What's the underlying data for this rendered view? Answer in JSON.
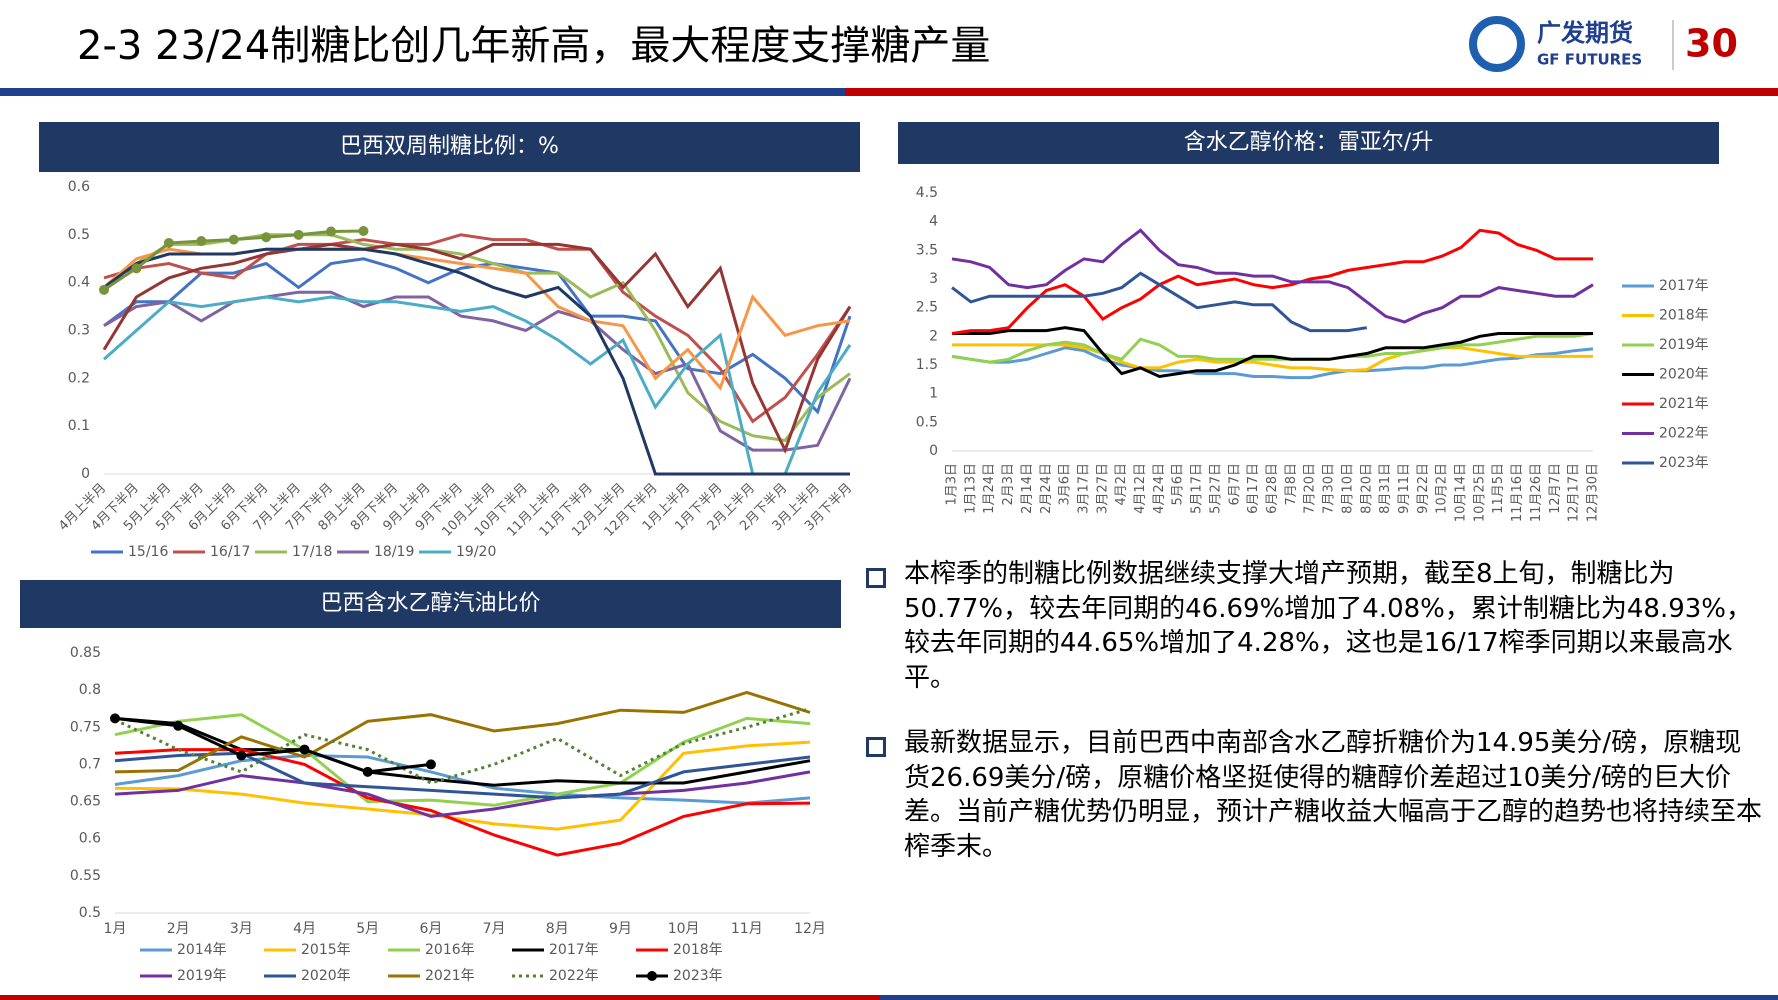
{
  "header": {
    "title": "2-3 23/24制糖比创几年新高，最大程度支撑糖产量",
    "logo_cn": "广发期货",
    "logo_en": "GF FUTURES",
    "badge": "30"
  },
  "chart_data": [
    {
      "type": "line",
      "title": "巴西双周制糖比例：%",
      "legend": "bottom",
      "categories": [
        "4月上半月",
        "4月下半月",
        "5月上半月",
        "5月下半月",
        "6月上半月",
        "6月下半月",
        "7月上半月",
        "7月下半月",
        "8月上半月",
        "8月下半月",
        "9月上半月",
        "9月下半月",
        "10月上半月",
        "10月下半月",
        "11月上半月",
        "11月下半月",
        "12月上半月",
        "12月下半月",
        "1月上半月",
        "1月下半月",
        "2月上半月",
        "2月下半月",
        "3月上半月",
        "3月下半月"
      ],
      "ylim": [
        0,
        0.6
      ],
      "yticks": [
        0,
        0.1,
        0.2,
        0.3,
        0.4,
        0.5,
        0.6
      ],
      "series": [
        {
          "name": "15/16",
          "color": "#4472c4",
          "values": [
            0.31,
            0.36,
            0.36,
            0.42,
            0.42,
            0.44,
            0.39,
            0.44,
            0.45,
            0.43,
            0.4,
            0.43,
            0.44,
            0.43,
            0.42,
            0.33,
            0.33,
            0.32,
            0.22,
            0.21,
            0.25,
            0.2,
            0.13,
            0.33
          ]
        },
        {
          "name": "16/17",
          "color": "#c0504d",
          "values": [
            0.41,
            0.43,
            0.44,
            0.42,
            0.41,
            0.46,
            0.48,
            0.48,
            0.49,
            0.48,
            0.48,
            0.5,
            0.49,
            0.49,
            0.47,
            0.47,
            0.38,
            0.33,
            0.29,
            0.22,
            0.11,
            0.16,
            0.25,
            0.35
          ]
        },
        {
          "name": "17/18",
          "color": "#9bbb59",
          "values": [
            0.39,
            0.44,
            0.48,
            0.48,
            0.49,
            0.5,
            0.5,
            0.5,
            0.48,
            0.47,
            0.47,
            0.46,
            0.44,
            0.42,
            0.42,
            0.37,
            0.4,
            0.3,
            0.17,
            0.11,
            0.08,
            0.07,
            0.16,
            0.21
          ]
        },
        {
          "name": "18/19",
          "color": "#8064a2",
          "values": [
            0.31,
            0.35,
            0.36,
            0.32,
            0.36,
            0.37,
            0.38,
            0.38,
            0.35,
            0.37,
            0.37,
            0.33,
            0.32,
            0.3,
            0.34,
            0.32,
            0.26,
            0.21,
            0.23,
            0.09,
            0.05,
            0.05,
            0.06,
            0.2
          ]
        },
        {
          "name": "19/20",
          "color": "#4bacc6",
          "values": [
            0.24,
            0.3,
            0.36,
            0.35,
            0.36,
            0.37,
            0.36,
            0.37,
            0.36,
            0.36,
            0.35,
            0.34,
            0.35,
            0.32,
            0.28,
            0.23,
            0.28,
            0.14,
            0.23,
            0.29,
            0.0,
            0.0,
            0.17,
            0.27
          ]
        },
        {
          "color": "#943634",
          "values": [
            0.26,
            0.37,
            0.41,
            0.43,
            0.44,
            0.46,
            0.47,
            0.48,
            0.47,
            0.48,
            0.47,
            0.45,
            0.48,
            0.48,
            0.48,
            0.47,
            0.39,
            0.46,
            0.35,
            0.43,
            0.19,
            0.05,
            0.24,
            0.35
          ]
        },
        {
          "color": "#f79646",
          "values": [
            0.39,
            0.45,
            0.47,
            0.46,
            0.46,
            0.47,
            0.47,
            0.47,
            0.47,
            0.46,
            0.45,
            0.44,
            0.43,
            0.42,
            0.35,
            0.32,
            0.31,
            0.2,
            0.26,
            0.18,
            0.37,
            0.29,
            0.31,
            0.32
          ]
        },
        {
          "color": "#1f3864",
          "values": [
            0.39,
            0.44,
            0.46,
            0.46,
            0.46,
            0.47,
            0.47,
            0.47,
            0.47,
            0.46,
            0.44,
            0.42,
            0.39,
            0.37,
            0.39,
            0.33,
            0.2,
            0,
            0,
            0,
            0,
            0,
            0,
            0
          ]
        },
        {
          "color": "#77933c",
          "marker": true,
          "values": [
            0.385,
            0.43,
            0.483,
            0.487,
            0.49,
            0.495,
            0.5,
            0.507,
            0.508,
            null,
            null,
            null,
            null,
            null,
            null,
            null,
            null,
            null,
            null,
            null,
            null,
            null,
            null,
            null
          ]
        }
      ]
    },
    {
      "type": "line",
      "title": "含水乙醇价格：雷亚尔/升",
      "legend": "right",
      "categories": [
        "1月3日",
        "1月13日",
        "1月24日",
        "2月3日",
        "2月14日",
        "2月24日",
        "3月6日",
        "3月17日",
        "3月27日",
        "4月2日",
        "4月12日",
        "4月24日",
        "5月6日",
        "5月17日",
        "5月27日",
        "6月7日",
        "6月17日",
        "6月28日",
        "7月8日",
        "7月20日",
        "7月30日",
        "8月10日",
        "8月20日",
        "8月31日",
        "9月11日",
        "9月22日",
        "10月2日",
        "10月14日",
        "10月25日",
        "11月5日",
        "11月16日",
        "11月26日",
        "12月7日",
        "12月17日",
        "12月30日"
      ],
      "ylim": [
        0,
        4.5
      ],
      "yticks": [
        0,
        0.5,
        1,
        1.5,
        2,
        2.5,
        3,
        3.5,
        4,
        4.5
      ],
      "series": [
        {
          "name": "2017年",
          "color": "#5b9bd5",
          "values": [
            1.65,
            1.6,
            1.55,
            1.55,
            1.6,
            1.7,
            1.8,
            1.75,
            1.6,
            1.5,
            1.45,
            1.4,
            1.4,
            1.35,
            1.35,
            1.35,
            1.3,
            1.3,
            1.28,
            1.28,
            1.35,
            1.4,
            1.4,
            1.42,
            1.45,
            1.45,
            1.5,
            1.5,
            1.55,
            1.6,
            1.62,
            1.68,
            1.7,
            1.75,
            1.78
          ]
        },
        {
          "name": "2018年",
          "color": "#ffc000",
          "values": [
            1.85,
            1.85,
            1.85,
            1.85,
            1.85,
            1.85,
            1.85,
            1.8,
            1.7,
            1.55,
            1.45,
            1.45,
            1.55,
            1.6,
            1.55,
            1.55,
            1.55,
            1.5,
            1.45,
            1.45,
            1.42,
            1.4,
            1.42,
            1.6,
            1.7,
            1.75,
            1.8,
            1.8,
            1.75,
            1.7,
            1.65,
            1.65,
            1.65,
            1.65,
            1.65
          ]
        },
        {
          "name": "2019年",
          "color": "#92d050",
          "values": [
            1.65,
            1.6,
            1.55,
            1.6,
            1.75,
            1.85,
            1.9,
            1.85,
            1.7,
            1.6,
            1.95,
            1.85,
            1.65,
            1.65,
            1.6,
            1.6,
            1.6,
            1.6,
            1.6,
            1.6,
            1.6,
            1.65,
            1.65,
            1.7,
            1.7,
            1.75,
            1.8,
            1.85,
            1.85,
            1.9,
            1.95,
            2.0,
            2.0,
            2.0,
            2.05
          ]
        },
        {
          "name": "2020年",
          "color": "#000000",
          "values": [
            2.05,
            2.05,
            2.05,
            2.1,
            2.1,
            2.1,
            2.15,
            2.1,
            1.7,
            1.35,
            1.45,
            1.3,
            1.35,
            1.4,
            1.4,
            1.5,
            1.65,
            1.65,
            1.6,
            1.6,
            1.6,
            1.65,
            1.7,
            1.8,
            1.8,
            1.8,
            1.85,
            1.9,
            2.0,
            2.05,
            2.05,
            2.05,
            2.05,
            2.05,
            2.05
          ]
        },
        {
          "name": "2021年",
          "color": "#ff0000",
          "values": [
            2.05,
            2.1,
            2.1,
            2.15,
            2.5,
            2.8,
            2.9,
            2.7,
            2.3,
            2.5,
            2.65,
            2.9,
            3.05,
            2.9,
            2.95,
            3.0,
            2.9,
            2.85,
            2.9,
            3.0,
            3.05,
            3.15,
            3.2,
            3.25,
            3.3,
            3.3,
            3.4,
            3.55,
            3.85,
            3.8,
            3.6,
            3.5,
            3.35,
            3.35,
            3.35
          ]
        },
        {
          "name": "2022年",
          "color": "#7030a0",
          "values": [
            3.35,
            3.3,
            3.2,
            2.9,
            2.85,
            2.9,
            3.15,
            3.35,
            3.3,
            3.6,
            3.85,
            3.5,
            3.25,
            3.2,
            3.1,
            3.1,
            3.05,
            3.05,
            2.95,
            2.95,
            2.95,
            2.85,
            2.6,
            2.35,
            2.25,
            2.4,
            2.5,
            2.7,
            2.7,
            2.85,
            2.8,
            2.75,
            2.7,
            2.7,
            2.9
          ]
        },
        {
          "name": "2023年",
          "color": "#2f5597",
          "values": [
            2.85,
            2.6,
            2.7,
            2.7,
            2.7,
            2.7,
            2.7,
            2.7,
            2.75,
            2.85,
            3.1,
            2.9,
            2.7,
            2.5,
            2.55,
            2.6,
            2.55,
            2.55,
            2.25,
            2.1,
            2.1,
            2.1,
            2.15,
            null,
            null,
            null,
            null,
            null,
            null,
            null,
            null,
            null,
            null,
            null,
            null
          ]
        }
      ]
    },
    {
      "type": "line",
      "title": "巴西含水乙醇汽油比价",
      "legend": "bottom",
      "categories": [
        "1月",
        "2月",
        "3月",
        "4月",
        "5月",
        "6月",
        "7月",
        "8月",
        "9月",
        "10月",
        "11月",
        "12月"
      ],
      "ylim": [
        0.5,
        0.85
      ],
      "yticks": [
        0.5,
        0.55,
        0.6,
        0.65,
        0.7,
        0.75,
        0.8,
        0.85
      ],
      "series": [
        {
          "name": "2014年",
          "color": "#5b9bd5",
          "values": [
            0.673,
            0.685,
            0.705,
            0.712,
            0.71,
            0.69,
            0.668,
            0.66,
            0.655,
            0.652,
            0.648,
            0.655
          ]
        },
        {
          "name": "2015年",
          "color": "#ffc000",
          "values": [
            0.668,
            0.667,
            0.66,
            0.648,
            0.64,
            0.632,
            0.62,
            0.613,
            0.625,
            0.715,
            0.725,
            0.73
          ]
        },
        {
          "name": "2016年",
          "color": "#92d050",
          "values": [
            0.74,
            0.758,
            0.767,
            0.72,
            0.65,
            0.652,
            0.645,
            0.66,
            0.675,
            0.73,
            0.762,
            0.755
          ]
        },
        {
          "name": "2017年",
          "color": "#000000",
          "values": [
            0.762,
            0.755,
            0.72,
            0.72,
            0.69,
            0.68,
            0.672,
            0.678,
            0.675,
            0.675,
            0.69,
            0.705
          ]
        },
        {
          "name": "2018年",
          "color": "#ff0000",
          "values": [
            0.715,
            0.72,
            0.72,
            0.7,
            0.655,
            0.638,
            0.605,
            0.578,
            0.594,
            0.63,
            0.647,
            0.648
          ]
        },
        {
          "name": "2019年",
          "color": "#7030a0",
          "values": [
            0.66,
            0.665,
            0.685,
            0.675,
            0.66,
            0.63,
            0.64,
            0.655,
            0.66,
            0.665,
            0.675,
            0.69
          ]
        },
        {
          "name": "2020年",
          "color": "#2f5597",
          "values": [
            0.705,
            0.712,
            0.715,
            0.675,
            0.67,
            0.665,
            0.66,
            0.655,
            0.66,
            0.69,
            0.7,
            0.71
          ]
        },
        {
          "name": "2021年",
          "color": "#997300",
          "values": [
            0.69,
            0.692,
            0.737,
            0.71,
            0.758,
            0.767,
            0.745,
            0.755,
            0.773,
            0.77,
            0.797,
            0.77
          ]
        },
        {
          "name": "2022年",
          "color": "#548235",
          "dash": true,
          "values": [
            0.76,
            0.72,
            0.69,
            0.74,
            0.72,
            0.675,
            0.7,
            0.735,
            0.685,
            0.728,
            0.75,
            0.775
          ]
        },
        {
          "name": "2023年",
          "color": "#000000",
          "marker": true,
          "values": [
            0.762,
            0.752,
            0.712,
            0.72,
            0.69,
            0.7,
            null,
            null,
            null,
            null,
            null,
            null
          ]
        }
      ]
    }
  ],
  "bullets": [
    "本榨季的制糖比例数据继续支撑大增产预期，截至8上旬，制糖比为50.77%，较去年同期的46.69%增加了4.08%，累计制糖比为48.93%，较去年同期的44.65%增加了4.28%，这也是16/17榨季同期以来最高水平。",
    "最新数据显示，目前巴西中南部含水乙醇折糖价为14.95美分/磅，原糖现货26.69美分/磅，原糖价格坚挺使得的糖醇价差超过10美分/磅的巨大价差。当前产糖优势仍明显，预计产糖收益大幅高于乙醇的趋势也将持续至本榨季末。"
  ]
}
